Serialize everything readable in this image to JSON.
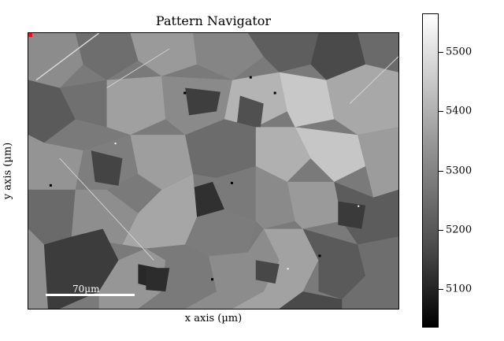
{
  "plot": {
    "title": "Pattern Navigator",
    "xlabel": "x axis (µm)",
    "ylabel": "y axis (µm)",
    "scalebar_label": "70µm"
  },
  "colorbar": {
    "ticks": [
      "5500",
      "5400",
      "5300",
      "5200",
      "5100"
    ],
    "range": [
      5035,
      5565
    ],
    "colors": {
      "top": "#ffffff",
      "bottom": "#000000"
    }
  }
}
